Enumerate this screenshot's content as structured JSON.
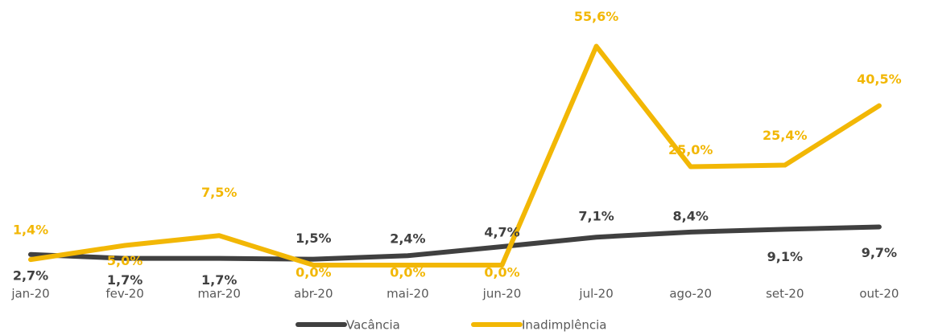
{
  "chart_data": {
    "type": "line",
    "categories": [
      "jan-20",
      "fev-20",
      "mar-20",
      "abr-20",
      "mai-20",
      "jun-20",
      "jul-20",
      "ago-20",
      "set-20",
      "out-20"
    ],
    "series": [
      {
        "name": "Vacância",
        "color": "#404040",
        "values": [
          2.7,
          1.7,
          1.7,
          1.5,
          2.4,
          4.7,
          7.1,
          8.4,
          9.1,
          9.7
        ],
        "value_labels": [
          "2,7%",
          "1,7%",
          "1,7%",
          "1,5%",
          "2,4%",
          "4,7%",
          "7,1%",
          "8,4%",
          "9,1%",
          "9,7%"
        ]
      },
      {
        "name": "Inadimplência",
        "color": "#F2B705",
        "values": [
          1.4,
          5.0,
          7.5,
          0.0,
          0.0,
          0.0,
          55.6,
          25.0,
          25.4,
          40.5
        ],
        "value_labels": [
          "1,4%",
          "5,0%",
          "7,5%",
          "0,0%",
          "0,0%",
          "0,0%",
          "55,6%",
          "25,0%",
          "25,4%",
          "40,5%"
        ]
      }
    ],
    "ylim": [
      0,
      60
    ],
    "grid": false,
    "legend": "bottom"
  }
}
